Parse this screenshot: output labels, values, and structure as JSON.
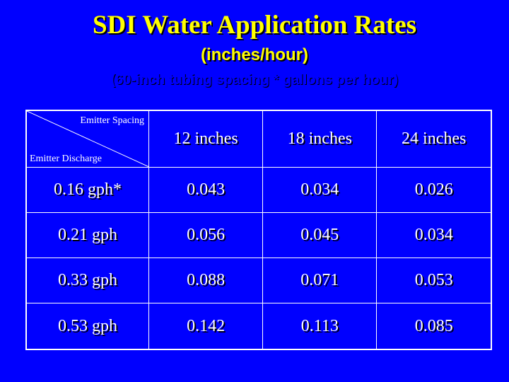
{
  "title": "SDI Water Application Rates",
  "subtitle": "(inches/hour)",
  "note": "(60-inch tubing spacing * gallons per hour)",
  "table": {
    "corner_top": "Emitter Spacing",
    "corner_bottom": "Emitter Discharge",
    "columns": [
      "12 inches",
      "18 inches",
      "24 inches"
    ],
    "rows": [
      {
        "label": "0.16 gph*",
        "values": [
          "0.043",
          "0.034",
          "0.026"
        ]
      },
      {
        "label": "0.21 gph",
        "values": [
          "0.056",
          "0.045",
          "0.034"
        ]
      },
      {
        "label": "0.33 gph",
        "values": [
          "0.088",
          "0.071",
          "0.053"
        ]
      },
      {
        "label": "0.53 gph",
        "values": [
          "0.142",
          "0.113",
          "0.085"
        ]
      }
    ]
  },
  "colors": {
    "background": "#0000ff",
    "title": "#ffff00",
    "text": "#ffffff"
  }
}
